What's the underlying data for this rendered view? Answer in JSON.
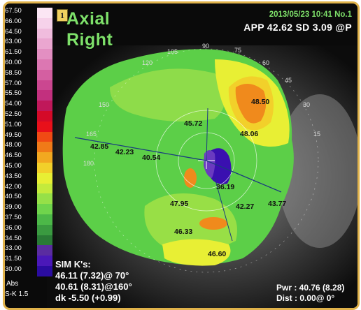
{
  "scale": [
    {
      "label": "67.50",
      "color": "#fbe6f4"
    },
    {
      "label": "66.00",
      "color": "#f6d2ea"
    },
    {
      "label": "64.50",
      "color": "#f0bcdd"
    },
    {
      "label": "63.00",
      "color": "#eaa6d0"
    },
    {
      "label": "61.50",
      "color": "#e38fc2"
    },
    {
      "label": "60.00",
      "color": "#dc77b2"
    },
    {
      "label": "58.50",
      "color": "#d45fa1"
    },
    {
      "label": "57.00",
      "color": "#cb4790"
    },
    {
      "label": "55.50",
      "color": "#c2307e"
    },
    {
      "label": "54.00",
      "color": "#c0185a"
    },
    {
      "label": "52.50",
      "color": "#d40a28"
    },
    {
      "label": "51.00",
      "color": "#e8101a"
    },
    {
      "label": "49.50",
      "color": "#f04a14"
    },
    {
      "label": "48.00",
      "color": "#f07a18"
    },
    {
      "label": "46.50",
      "color": "#f2a820"
    },
    {
      "label": "45.00",
      "color": "#f2d02a"
    },
    {
      "label": "43.50",
      "color": "#e8ef34"
    },
    {
      "label": "42.00",
      "color": "#c4ea3c"
    },
    {
      "label": "40.50",
      "color": "#96e048"
    },
    {
      "label": "39.00",
      "color": "#6fd44c"
    },
    {
      "label": "37.50",
      "color": "#4cb848"
    },
    {
      "label": "36.00",
      "color": "#3a9a40"
    },
    {
      "label": "34.50",
      "color": "#2a7a36"
    },
    {
      "label": "33.00",
      "color": "#5a2ca0"
    },
    {
      "label": "31.50",
      "color": "#4a18b8"
    },
    {
      "label": "30.00",
      "color": "#2a0ca0"
    }
  ],
  "scale_extra": {
    "abs": "Abs",
    "sk": "S-K 1.5"
  },
  "badge": "1",
  "title": {
    "line1": "Axial",
    "line2": "Right"
  },
  "header": {
    "date": "2013/05/23 10:41 No.1",
    "app": "APP 42.62 SD 3.09  @P"
  },
  "axis_labels": [
    "120",
    "105",
    "90",
    "75",
    "60",
    "45",
    "150",
    "30",
    "165",
    "15",
    "180"
  ],
  "map_values": [
    "48.50",
    "45.72",
    "48.06",
    "42.85",
    "42.23",
    "40.54",
    "36.19",
    "47.95",
    "42.27",
    "43.77",
    "46.33",
    "46.60"
  ],
  "sim": {
    "line1": "SIM K's:",
    "line2": "46.11 (7.32)@ 70°",
    "line3": "40.61 (8.31)@160°",
    "line4": "dk -5.50 (+0.99)"
  },
  "footer": {
    "pwr": "Pwr : 40.76 (8.28)",
    "dist": "Dist : 0.00@  0°"
  }
}
